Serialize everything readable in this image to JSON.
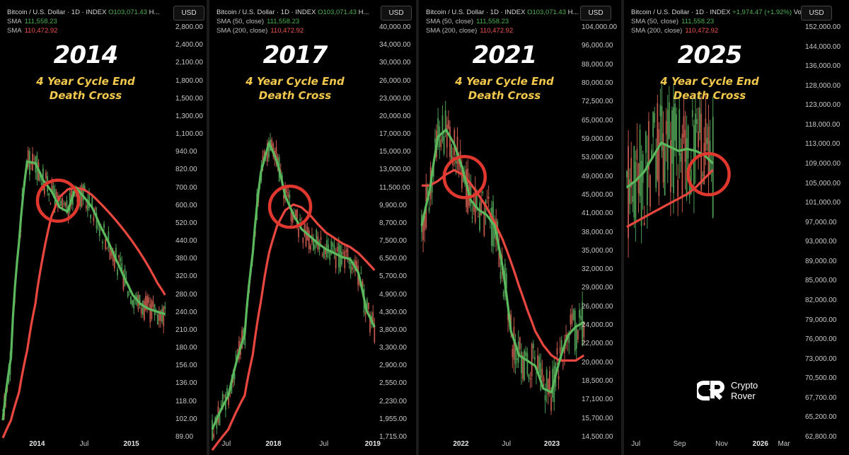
{
  "currency_button": "USD",
  "brand": {
    "line1": "Crypto",
    "line2": "Rover",
    "logo": "cr-logo-icon"
  },
  "colors": {
    "sma50": "#5cb85c",
    "sma200": "#e8473f",
    "up": "#4c9a52",
    "down": "#c0574a",
    "circle": "#e0372f",
    "subtitle": "#f2c94c"
  },
  "panels": [
    {
      "year": "2014",
      "subtitle1": "4 Year Cycle End",
      "subtitle2": "Death Cross",
      "header": "Bitcoin / U.S. Dollar · 1D · INDEX",
      "header_o": "O103,071.43",
      "header_tail": "H...",
      "sma_label": "SMA",
      "sma50_value": "111,558.23",
      "sma200_label": "SMA",
      "sma200_value": "110,472.92",
      "yticks": [
        "2,800.00",
        "2,400.00",
        "2,100.00",
        "1,800.00",
        "1,500.00",
        "1,300.00",
        "1,100.00",
        "940.00",
        "820.00",
        "700.00",
        "600.00",
        "520.00",
        "440.00",
        "380.00",
        "320.00",
        "280.00",
        "240.00",
        "210.00",
        "180.00",
        "156.00",
        "136.00",
        "118.00",
        "102.00",
        "89.00"
      ],
      "xticks": [
        {
          "label": "2014",
          "bold": true,
          "pos": 0.22
        },
        {
          "label": "Jul",
          "bold": false,
          "pos": 0.5
        },
        {
          "label": "2015",
          "bold": true,
          "pos": 0.78
        }
      ]
    },
    {
      "year": "2017",
      "subtitle1": "4 Year Cycle End",
      "subtitle2": "Death Cross",
      "header": "Bitcoin / U.S. Dollar · 1D · INDEX",
      "header_o": "O103,071.43",
      "header_tail": "H...",
      "sma_label": "SMA (50, close)",
      "sma50_value": "111,558.23",
      "sma200_label": "SMA (200, close)",
      "sma200_value": "110,472.92",
      "yticks": [
        "40,000.00",
        "34,000.00",
        "30,000.00",
        "26,000.00",
        "23,000.00",
        "20,000.00",
        "17,000.00",
        "15,000.00",
        "13,000.00",
        "11,500.00",
        "9,900.00",
        "8,700.00",
        "7,500.00",
        "6,500.00",
        "5,700.00",
        "4,900.00",
        "4,300.00",
        "3,800.00",
        "3,300.00",
        "2,900.00",
        "2,550.00",
        "2,230.00",
        "1,955.00",
        "1,715.00"
      ],
      "xticks": [
        {
          "label": "Jul",
          "bold": false,
          "pos": 0.1
        },
        {
          "label": "2018",
          "bold": true,
          "pos": 0.38
        },
        {
          "label": "Jul",
          "bold": false,
          "pos": 0.68
        },
        {
          "label": "2019",
          "bold": true,
          "pos": 0.97
        }
      ]
    },
    {
      "year": "2021",
      "subtitle1": "4 Year Cycle End",
      "subtitle2": "Death Cross",
      "header": "Bitcoin / U.S. Dollar · 1D · INDEX",
      "header_o": "O103,071.43",
      "header_tail": "H...",
      "sma_label": "SMA (50, close)",
      "sma50_value": "111,558.23",
      "sma200_label": "SMA (200, close)",
      "sma200_value": "110,472.92",
      "yticks": [
        "104,000.00",
        "96,000.00",
        "88,000.00",
        "80,000.00",
        "72,500.00",
        "65,000.00",
        "59,000.00",
        "53,000.00",
        "49,000.00",
        "45,000.00",
        "41,000.00",
        "38,000.00",
        "35,000.00",
        "32,000.00",
        "29,000.00",
        "26,000.00",
        "24,000.00",
        "22,000.00",
        "20,000.00",
        "18,500.00",
        "17,100.00",
        "15,700.00",
        "14,500.00"
      ],
      "xticks": [
        {
          "label": "2022",
          "bold": true,
          "pos": 0.25
        },
        {
          "label": "Jul",
          "bold": false,
          "pos": 0.52
        },
        {
          "label": "2023",
          "bold": true,
          "pos": 0.79
        }
      ]
    },
    {
      "year": "2025",
      "subtitle1": "4 Year Cycle End",
      "subtitle2": "Death Cross",
      "header": "Bitcoin / U.S. Dollar · 1D · INDEX",
      "header_o": "+1,974.47 (+1.92%)",
      "header_tail": "Vol...",
      "sma_label": "SMA (50, close)",
      "sma50_value": "111,558.23",
      "sma200_label": "SMA (200, close)",
      "sma200_value": "110,472.92",
      "yticks": [
        "152,000.00",
        "144,000.00",
        "136,000.00",
        "128,000.00",
        "123,000.00",
        "118,000.00",
        "113,000.00",
        "109,000.00",
        "105,000.00",
        "101,000.00",
        "97,000.00",
        "93,000.00",
        "89,000.00",
        "85,000.00",
        "82,000.00",
        "79,000.00",
        "76,000.00",
        "73,000.00",
        "70,500.00",
        "67,700.00",
        "65,200.00",
        "62,800.00"
      ],
      "xticks": [
        {
          "label": "Jul",
          "bold": false,
          "pos": 0.07
        },
        {
          "label": "Sep",
          "bold": false,
          "pos": 0.33
        },
        {
          "label": "Nov",
          "bold": false,
          "pos": 0.58
        },
        {
          "label": "2026",
          "bold": true,
          "pos": 0.81
        },
        {
          "label": "Mar",
          "bold": false,
          "pos": 0.95
        }
      ]
    }
  ],
  "chart_data": [
    {
      "type": "line",
      "title": "2014",
      "series": [
        {
          "name": "SMA",
          "x": [
            0,
            0.05,
            0.1,
            0.15,
            0.2,
            0.25,
            0.3,
            0.35,
            0.4,
            0.45,
            0.5,
            0.55,
            0.6,
            0.65,
            0.7,
            0.75,
            0.8,
            0.85,
            0.9,
            0.95,
            1.0
          ],
          "y": [
            95,
            160,
            420,
            820,
            810,
            700,
            640,
            560,
            540,
            660,
            610,
            560,
            480,
            420,
            360,
            310,
            270,
            250,
            240,
            235,
            230
          ]
        },
        {
          "name": "SMA",
          "x": [
            0,
            0.05,
            0.1,
            0.15,
            0.2,
            0.25,
            0.3,
            0.35,
            0.4,
            0.45,
            0.5,
            0.55,
            0.6,
            0.65,
            0.7,
            0.75,
            0.8,
            0.85,
            0.9,
            0.95,
            1.0
          ],
          "y": [
            82,
            95,
            120,
            170,
            250,
            380,
            520,
            610,
            650,
            660,
            650,
            620,
            580,
            540,
            500,
            460,
            420,
            380,
            340,
            300,
            270
          ]
        }
      ]
    },
    {
      "type": "line",
      "title": "2017",
      "series": [
        {
          "name": "SMA (50, close)",
          "x": [
            0,
            0.1,
            0.2,
            0.25,
            0.3,
            0.35,
            0.4,
            0.45,
            0.5,
            0.55,
            0.6,
            0.65,
            0.7,
            0.75,
            0.8,
            0.85,
            0.9,
            0.95,
            1.0
          ],
          "y": [
            1700,
            2200,
            3500,
            6500,
            12000,
            15000,
            13000,
            10000,
            8700,
            7800,
            7400,
            7000,
            6700,
            6500,
            6300,
            6200,
            5600,
            4200,
            3700
          ]
        },
        {
          "name": "SMA (200, close)",
          "x": [
            0,
            0.1,
            0.2,
            0.25,
            0.3,
            0.35,
            0.4,
            0.45,
            0.5,
            0.55,
            0.6,
            0.65,
            0.7,
            0.75,
            0.8,
            0.85,
            0.9,
            0.95,
            1.0
          ],
          "y": [
            1450,
            1700,
            2200,
            3000,
            4500,
            6500,
            8000,
            9000,
            9400,
            9200,
            8700,
            8100,
            7600,
            7300,
            7000,
            6800,
            6500,
            6100,
            5700
          ]
        }
      ]
    },
    {
      "type": "line",
      "title": "2021",
      "series": [
        {
          "name": "SMA (50, close)",
          "x": [
            0,
            0.05,
            0.1,
            0.15,
            0.2,
            0.25,
            0.3,
            0.35,
            0.4,
            0.45,
            0.5,
            0.55,
            0.6,
            0.65,
            0.7,
            0.75,
            0.8,
            0.85,
            0.9,
            0.95,
            1.0
          ],
          "y": [
            38000,
            45000,
            58000,
            60000,
            56000,
            50000,
            43000,
            41000,
            40000,
            38000,
            31000,
            23000,
            20500,
            20000,
            19500,
            17500,
            17200,
            20000,
            22500,
            23500,
            24000
          ]
        },
        {
          "name": "SMA (200, close)",
          "x": [
            0,
            0.05,
            0.1,
            0.15,
            0.2,
            0.25,
            0.3,
            0.35,
            0.4,
            0.45,
            0.5,
            0.55,
            0.6,
            0.65,
            0.7,
            0.75,
            0.8,
            0.85,
            0.9,
            0.95,
            1.0
          ],
          "y": [
            46000,
            46000,
            47000,
            48500,
            49500,
            48500,
            46500,
            44000,
            41500,
            38500,
            35500,
            32000,
            28500,
            25500,
            23000,
            21500,
            20500,
            20000,
            20000,
            20000,
            20500
          ]
        }
      ]
    },
    {
      "type": "line",
      "title": "2025",
      "series": [
        {
          "name": "SMA (50, close)",
          "x": [
            0,
            0.1,
            0.2,
            0.3,
            0.4,
            0.5,
            0.6,
            0.7,
            0.8,
            0.9,
            1.0
          ],
          "y": [
            105000,
            106500,
            108500,
            112000,
            115500,
            114500,
            113500,
            114000,
            113500,
            112500,
            110500
          ]
        },
        {
          "name": "SMA (200, close)",
          "x": [
            0,
            0.1,
            0.2,
            0.3,
            0.4,
            0.5,
            0.6,
            0.7,
            0.8,
            0.9,
            1.0
          ],
          "y": [
            96500,
            97500,
            98500,
            99500,
            100500,
            101500,
            102500,
            103500,
            105000,
            107000,
            109000
          ]
        }
      ]
    }
  ]
}
